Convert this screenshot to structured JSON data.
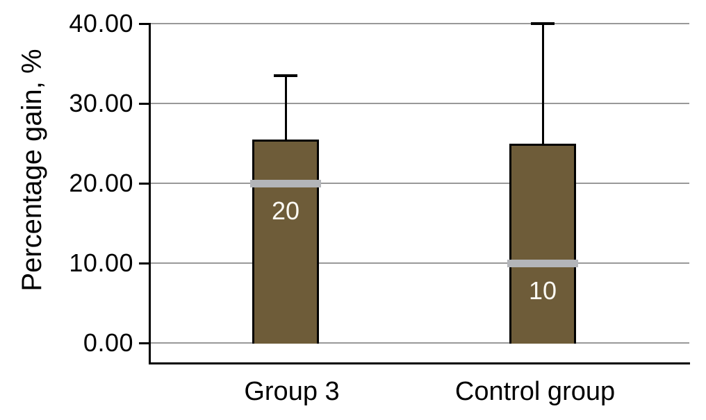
{
  "chart_data": {
    "type": "bar",
    "title": "",
    "xlabel": "",
    "ylabel": "Percentage gain, %",
    "ylim": [
      0,
      40
    ],
    "grid": "horizontal",
    "legend": "none",
    "yticks": [
      {
        "value": 40,
        "label": "40.00"
      },
      {
        "value": 30,
        "label": "30.00"
      },
      {
        "value": 20,
        "label": "20.00"
      },
      {
        "value": 10,
        "label": "10.00"
      },
      {
        "value": 0,
        "label": "0.00"
      }
    ],
    "categories": [
      "Group 3",
      "Control group"
    ],
    "series": [
      {
        "name": "Percentage gain",
        "bars": [
          {
            "category": "Group 3",
            "bar_top": 25.5,
            "error_top": 33.5,
            "marker_value": 20,
            "marker_label": "20"
          },
          {
            "category": "Control group",
            "bar_top": 25.0,
            "error_top": 40.0,
            "marker_value": 10,
            "marker_label": "10"
          }
        ]
      }
    ],
    "colors": {
      "background": "#ffffff",
      "bar_fill": "#6e5c39",
      "bar_border": "#000000",
      "marker_band": "#b3b5b9",
      "gridline": "#999999",
      "axis": "#000000",
      "value_label": "#fbf9f3",
      "text": "#000000"
    }
  }
}
